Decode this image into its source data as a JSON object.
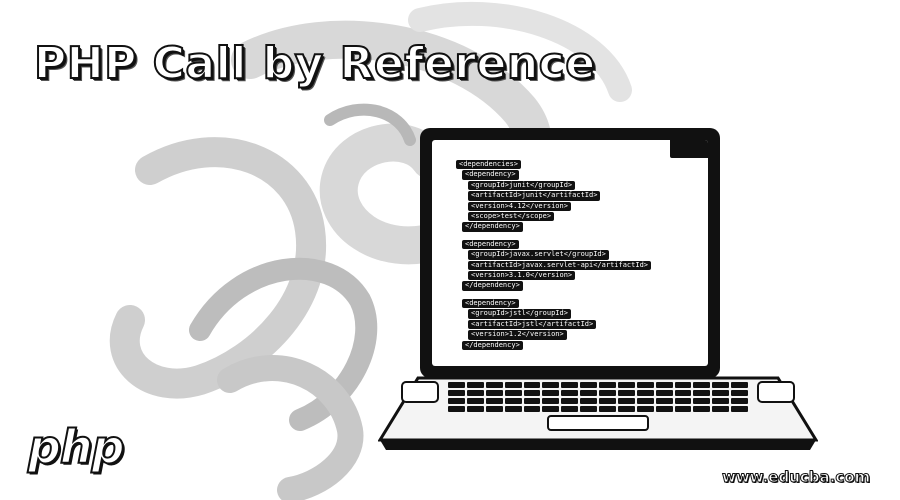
{
  "title": "PHP Call by Reference",
  "code_groups": [
    {
      "lines": [
        "<dependencies>",
        "<dependency>",
        "<groupId>junit</groupId>",
        "<artifactId>junit</artifactId>",
        "<version>4.12</version>",
        "<scope>test</scope>",
        "</dependency>"
      ]
    },
    {
      "lines": [
        "<dependency>",
        "<groupId>javax.servlet</groupId>",
        "<artifactId>javax.servlet-api</artifactId>",
        "<version>3.1.0</version>",
        "</dependency>"
      ]
    },
    {
      "lines": [
        "<dependency>",
        "<groupId>jstl</groupId>",
        "<artifactId>jstl</artifactId>",
        "<version>1.2</version>",
        "</dependency>"
      ]
    }
  ],
  "logo_text": "php",
  "watermark": "www.educba.com",
  "colors": {
    "ink": "#111111",
    "paper": "#ffffff",
    "swirl": "#cfcfcf"
  }
}
